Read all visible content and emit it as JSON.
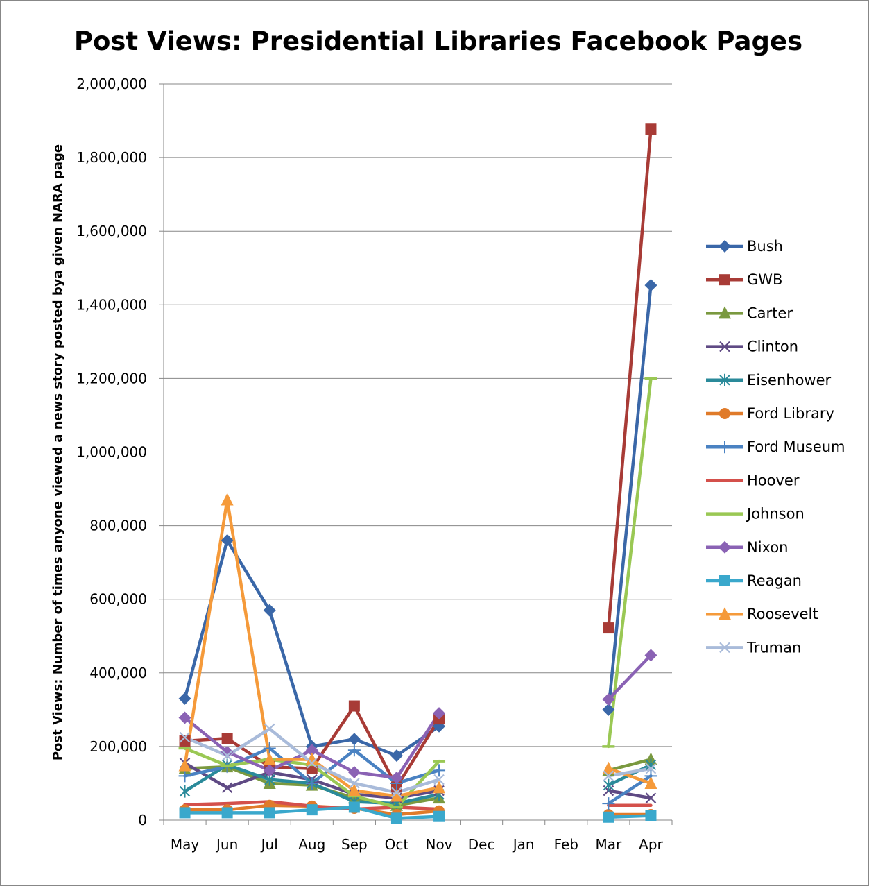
{
  "chart_data": {
    "type": "line",
    "title": "Post Views: Presidential Libraries Facebook Pages",
    "xlabel": "",
    "ylabel": "Post Views: Number of times anyone viewed a news story posted bya given NARA page",
    "categories": [
      "May",
      "Jun",
      "Jul",
      "Aug",
      "Sep",
      "Oct",
      "Nov",
      "Dec",
      "Jan",
      "Feb",
      "Mar",
      "Apr"
    ],
    "ylim": [
      0,
      2000000
    ],
    "yticks": [
      {
        "value": 0,
        "label": "0"
      },
      {
        "value": 200000,
        "label": "200,000"
      },
      {
        "value": 400000,
        "label": "400,000"
      },
      {
        "value": 600000,
        "label": "600,000"
      },
      {
        "value": 800000,
        "label": "800,000"
      },
      {
        "value": 1000000,
        "label": "1,000,000"
      },
      {
        "value": 1200000,
        "label": "1,200,000"
      },
      {
        "value": 1400000,
        "label": "1,400,000"
      },
      {
        "value": 1600000,
        "label": "1,600,000"
      },
      {
        "value": 1800000,
        "label": "1,800,000"
      },
      {
        "value": 2000000,
        "label": "2,000,000"
      }
    ],
    "grid": true,
    "legend_position": "right",
    "series": [
      {
        "name": "Bush",
        "color": "#3a67a8",
        "marker": "diamond",
        "values": [
          330000,
          760000,
          570000,
          200000,
          220000,
          175000,
          255000,
          null,
          null,
          null,
          300000,
          1453000
        ]
      },
      {
        "name": "GWB",
        "color": "#a83b36",
        "marker": "square",
        "values": [
          215000,
          222000,
          145000,
          140000,
          310000,
          90000,
          275000,
          null,
          null,
          null,
          522000,
          1877000
        ]
      },
      {
        "name": "Carter",
        "color": "#7a993f",
        "marker": "triangle",
        "values": [
          140000,
          145000,
          100000,
          95000,
          60000,
          40000,
          60000,
          null,
          null,
          null,
          135000,
          165000
        ]
      },
      {
        "name": "Clinton",
        "color": "#5f4a84",
        "marker": "x",
        "values": [
          155000,
          88000,
          130000,
          110000,
          70000,
          60000,
          80000,
          null,
          null,
          null,
          80000,
          60000
        ]
      },
      {
        "name": "Eisenhower",
        "color": "#2a8a9a",
        "marker": "asterisk",
        "values": [
          78000,
          150000,
          110000,
          100000,
          50000,
          45000,
          70000,
          null,
          null,
          null,
          95000,
          150000
        ]
      },
      {
        "name": "Ford Library",
        "color": "#e07b2a",
        "marker": "circle",
        "values": [
          28000,
          28000,
          40000,
          38000,
          32000,
          15000,
          25000,
          null,
          null,
          null,
          15000,
          15000
        ]
      },
      {
        "name": "Ford Museum",
        "color": "#4a82c2",
        "marker": "plus",
        "values": [
          120000,
          145000,
          195000,
          100000,
          190000,
          100000,
          135000,
          null,
          null,
          null,
          45000,
          120000
        ]
      },
      {
        "name": "Hoover",
        "color": "#d4504b",
        "marker": "none",
        "values": [
          42000,
          45000,
          50000,
          38000,
          30000,
          35000,
          30000,
          null,
          null,
          null,
          40000,
          40000
        ]
      },
      {
        "name": "Johnson",
        "color": "#9ac854",
        "marker": "dash",
        "values": [
          195000,
          148000,
          165000,
          150000,
          65000,
          35000,
          160000,
          null,
          null,
          null,
          200000,
          1200000
        ]
      },
      {
        "name": "Nixon",
        "color": "#8a62b4",
        "marker": "diamond",
        "values": [
          278000,
          185000,
          135000,
          190000,
          130000,
          115000,
          290000,
          null,
          null,
          null,
          328000,
          448000
        ]
      },
      {
        "name": "Reagan",
        "color": "#3aa8cc",
        "marker": "square",
        "values": [
          20000,
          20000,
          20000,
          28000,
          35000,
          5000,
          10000,
          null,
          null,
          null,
          8000,
          12000
        ]
      },
      {
        "name": "Roosevelt",
        "color": "#f59a3a",
        "marker": "triangle",
        "values": [
          148000,
          870000,
          165000,
          165000,
          80000,
          65000,
          88000,
          null,
          null,
          null,
          140000,
          100000
        ]
      },
      {
        "name": "Truman",
        "color": "#a9bbda",
        "marker": "x",
        "values": [
          225000,
          175000,
          248000,
          155000,
          100000,
          75000,
          110000,
          null,
          null,
          null,
          120000,
          140000
        ]
      }
    ]
  }
}
